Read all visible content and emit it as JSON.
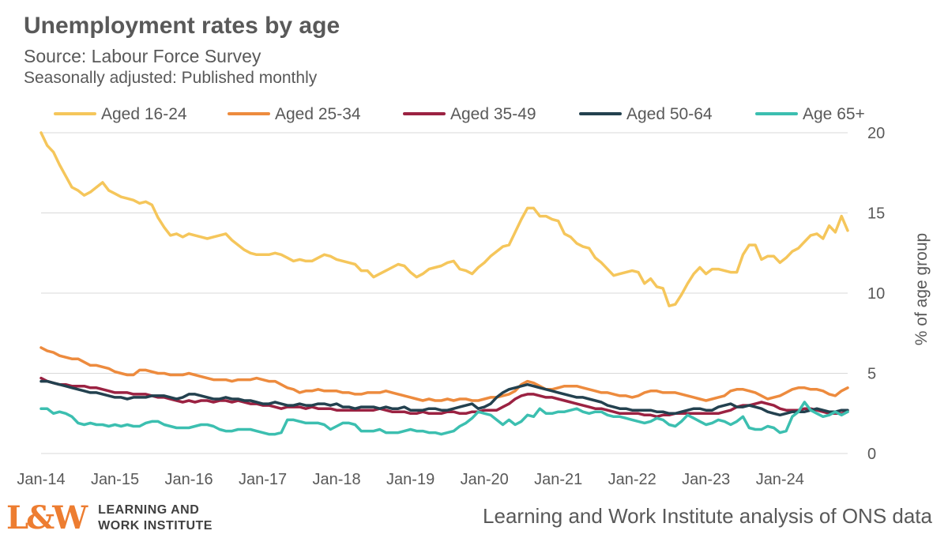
{
  "header": {
    "title": "Unemployment rates by age",
    "subtitle": "Source: Labour Force Survey",
    "subtitle2": "Seasonally adjusted: Published monthly"
  },
  "footer": {
    "logo_mark": "L&W",
    "logo_line1": "LEARNING AND",
    "logo_line2": "WORK INSTITUTE",
    "source_note": "Learning and Work Institute analysis of ONS data"
  },
  "chart_data": {
    "type": "line",
    "title": "Unemployment rates by age",
    "ylabel": "% of age group",
    "ylim": [
      0,
      20
    ],
    "yticks": [
      0,
      5,
      10,
      15,
      20
    ],
    "y_axis_side": "right",
    "grid": true,
    "legend_position": "top",
    "x_start": "Jan-14",
    "x_tick_labels": [
      "Jan-14",
      "Jan-15",
      "Jan-16",
      "Jan-17",
      "Jan-18",
      "Jan-19",
      "Jan-20",
      "Jan-21",
      "Jan-22",
      "Jan-23",
      "Jan-24"
    ],
    "frequency": "monthly",
    "series": [
      {
        "name": "Aged 16-24",
        "color": "#f5c65b",
        "values": [
          20.0,
          19.2,
          18.8,
          18.0,
          17.3,
          16.6,
          16.4,
          16.1,
          16.3,
          16.6,
          16.9,
          16.4,
          16.2,
          16.0,
          15.9,
          15.8,
          15.6,
          15.7,
          15.5,
          14.7,
          14.1,
          13.6,
          13.7,
          13.5,
          13.7,
          13.6,
          13.5,
          13.4,
          13.5,
          13.6,
          13.7,
          13.3,
          13.0,
          12.7,
          12.5,
          12.4,
          12.4,
          12.4,
          12.5,
          12.4,
          12.2,
          12.0,
          12.1,
          12.0,
          12.0,
          12.2,
          12.4,
          12.3,
          12.1,
          12.0,
          11.9,
          11.8,
          11.4,
          11.4,
          11.0,
          11.2,
          11.4,
          11.6,
          11.8,
          11.7,
          11.3,
          11.0,
          11.2,
          11.5,
          11.6,
          11.7,
          11.9,
          12.0,
          11.5,
          11.4,
          11.2,
          11.6,
          11.9,
          12.3,
          12.6,
          12.9,
          13.0,
          13.8,
          14.6,
          15.3,
          15.3,
          14.8,
          14.8,
          14.6,
          14.5,
          13.7,
          13.5,
          13.1,
          12.9,
          12.8,
          12.2,
          11.9,
          11.5,
          11.1,
          11.2,
          11.3,
          11.4,
          11.3,
          10.6,
          10.9,
          10.4,
          10.3,
          9.2,
          9.3,
          9.9,
          10.6,
          11.2,
          11.6,
          11.2,
          11.5,
          11.5,
          11.4,
          11.3,
          11.3,
          12.4,
          13.0,
          13.0,
          12.1,
          12.3,
          12.3,
          11.9,
          12.2,
          12.6,
          12.8,
          13.2,
          13.6,
          13.7,
          13.4,
          14.2,
          13.8,
          14.8,
          13.9
        ]
      },
      {
        "name": "Aged 25-34",
        "color": "#ed8b3e",
        "values": [
          6.6,
          6.4,
          6.3,
          6.1,
          6.0,
          5.9,
          5.9,
          5.7,
          5.5,
          5.5,
          5.4,
          5.3,
          5.1,
          5.0,
          4.9,
          4.9,
          5.2,
          5.2,
          5.1,
          5.0,
          5.0,
          4.9,
          4.9,
          4.9,
          5.0,
          4.9,
          4.8,
          4.7,
          4.6,
          4.6,
          4.6,
          4.5,
          4.6,
          4.6,
          4.6,
          4.7,
          4.6,
          4.5,
          4.5,
          4.3,
          4.1,
          4.0,
          3.8,
          3.9,
          3.9,
          4.0,
          3.9,
          3.9,
          3.9,
          3.8,
          3.8,
          3.7,
          3.7,
          3.8,
          3.8,
          3.8,
          3.9,
          3.8,
          3.7,
          3.6,
          3.5,
          3.4,
          3.3,
          3.4,
          3.3,
          3.3,
          3.4,
          3.3,
          3.4,
          3.4,
          3.3,
          3.3,
          3.4,
          3.5,
          3.5,
          3.6,
          3.7,
          3.9,
          4.3,
          4.5,
          4.4,
          4.2,
          4.0,
          4.0,
          4.1,
          4.2,
          4.2,
          4.2,
          4.1,
          4.0,
          3.9,
          3.8,
          3.8,
          3.7,
          3.6,
          3.6,
          3.5,
          3.6,
          3.8,
          3.9,
          3.9,
          3.8,
          3.8,
          3.8,
          3.7,
          3.6,
          3.5,
          3.4,
          3.3,
          3.4,
          3.5,
          3.6,
          3.9,
          4.0,
          4.0,
          3.9,
          3.8,
          3.6,
          3.4,
          3.5,
          3.6,
          3.8,
          4.0,
          4.1,
          4.1,
          4.0,
          4.0,
          3.9,
          3.7,
          3.6,
          3.9,
          4.1
        ]
      },
      {
        "name": "Aged 35-49",
        "color": "#9b2242",
        "values": [
          4.7,
          4.5,
          4.4,
          4.3,
          4.3,
          4.2,
          4.2,
          4.2,
          4.1,
          4.1,
          4.0,
          3.9,
          3.8,
          3.8,
          3.8,
          3.7,
          3.7,
          3.7,
          3.6,
          3.5,
          3.5,
          3.4,
          3.3,
          3.2,
          3.3,
          3.2,
          3.3,
          3.3,
          3.2,
          3.3,
          3.3,
          3.2,
          3.3,
          3.2,
          3.1,
          3.1,
          3.0,
          3.0,
          2.9,
          2.8,
          2.9,
          2.9,
          2.9,
          2.8,
          2.9,
          2.8,
          2.8,
          2.8,
          2.7,
          2.7,
          2.7,
          2.7,
          2.7,
          2.7,
          2.7,
          2.8,
          2.7,
          2.6,
          2.6,
          2.6,
          2.5,
          2.5,
          2.6,
          2.5,
          2.5,
          2.5,
          2.6,
          2.6,
          2.5,
          2.5,
          2.6,
          2.6,
          2.7,
          2.7,
          2.7,
          2.9,
          3.1,
          3.4,
          3.6,
          3.7,
          3.7,
          3.6,
          3.5,
          3.5,
          3.4,
          3.3,
          3.2,
          3.1,
          3.0,
          2.9,
          2.8,
          2.8,
          2.7,
          2.6,
          2.5,
          2.5,
          2.5,
          2.5,
          2.4,
          2.4,
          2.3,
          2.4,
          2.4,
          2.5,
          2.5,
          2.5,
          2.5,
          2.5,
          2.5,
          2.5,
          2.5,
          2.6,
          2.7,
          2.9,
          3.0,
          3.0,
          3.1,
          3.2,
          3.1,
          3.0,
          2.8,
          2.7,
          2.7,
          2.7,
          2.8,
          2.8,
          2.7,
          2.6,
          2.5,
          2.5,
          2.5,
          2.6
        ]
      },
      {
        "name": "Aged 50-64",
        "color": "#23414f",
        "values": [
          4.5,
          4.5,
          4.4,
          4.3,
          4.2,
          4.1,
          4.0,
          3.9,
          3.8,
          3.8,
          3.7,
          3.6,
          3.5,
          3.5,
          3.4,
          3.5,
          3.5,
          3.5,
          3.6,
          3.6,
          3.6,
          3.5,
          3.4,
          3.5,
          3.7,
          3.7,
          3.6,
          3.5,
          3.4,
          3.4,
          3.5,
          3.4,
          3.4,
          3.3,
          3.3,
          3.2,
          3.1,
          3.1,
          3.2,
          3.1,
          3.0,
          3.0,
          3.1,
          3.0,
          3.0,
          3.1,
          3.1,
          3.0,
          3.1,
          2.9,
          2.9,
          2.8,
          2.9,
          2.9,
          2.9,
          2.8,
          2.9,
          2.8,
          2.8,
          2.9,
          2.7,
          2.7,
          2.7,
          2.8,
          2.8,
          2.7,
          2.7,
          2.8,
          2.9,
          3.0,
          3.1,
          2.8,
          2.9,
          3.1,
          3.5,
          3.8,
          4.0,
          4.1,
          4.2,
          4.3,
          4.2,
          4.1,
          4.0,
          3.9,
          3.8,
          3.7,
          3.6,
          3.5,
          3.5,
          3.4,
          3.3,
          3.2,
          3.0,
          2.9,
          2.8,
          2.8,
          2.7,
          2.7,
          2.7,
          2.7,
          2.6,
          2.6,
          2.5,
          2.5,
          2.6,
          2.7,
          2.8,
          2.8,
          2.7,
          2.7,
          2.9,
          3.0,
          3.1,
          2.9,
          2.9,
          3.0,
          2.9,
          2.8,
          2.6,
          2.5,
          2.4,
          2.5,
          2.6,
          2.6,
          2.6,
          2.7,
          2.8,
          2.7,
          2.6,
          2.6,
          2.7,
          2.7
        ]
      },
      {
        "name": "Age 65+",
        "color": "#3cbfb0",
        "values": [
          2.8,
          2.8,
          2.5,
          2.6,
          2.5,
          2.3,
          1.9,
          1.8,
          1.9,
          1.8,
          1.8,
          1.7,
          1.8,
          1.7,
          1.8,
          1.7,
          1.7,
          1.9,
          2.0,
          2.0,
          1.8,
          1.7,
          1.6,
          1.6,
          1.6,
          1.7,
          1.8,
          1.8,
          1.7,
          1.5,
          1.4,
          1.4,
          1.5,
          1.5,
          1.5,
          1.4,
          1.3,
          1.2,
          1.2,
          1.3,
          2.1,
          2.1,
          2.0,
          1.9,
          1.9,
          1.9,
          1.8,
          1.5,
          1.7,
          1.9,
          1.9,
          1.8,
          1.4,
          1.4,
          1.4,
          1.5,
          1.3,
          1.3,
          1.3,
          1.4,
          1.5,
          1.4,
          1.4,
          1.3,
          1.3,
          1.2,
          1.3,
          1.4,
          1.7,
          1.9,
          2.2,
          2.6,
          2.5,
          2.4,
          2.1,
          1.8,
          2.1,
          1.8,
          2.0,
          2.4,
          2.3,
          2.8,
          2.5,
          2.5,
          2.6,
          2.6,
          2.7,
          2.8,
          2.6,
          2.5,
          2.6,
          2.6,
          2.4,
          2.3,
          2.3,
          2.2,
          2.1,
          2.0,
          1.9,
          2.0,
          2.2,
          2.1,
          1.8,
          1.7,
          2.0,
          2.4,
          2.2,
          2.0,
          1.8,
          1.9,
          2.1,
          2.0,
          1.8,
          2.0,
          2.3,
          1.6,
          1.5,
          1.5,
          1.7,
          1.6,
          1.3,
          1.4,
          2.3,
          2.6,
          3.2,
          2.7,
          2.5,
          2.3,
          2.4,
          2.6,
          2.4,
          2.6
        ]
      }
    ]
  }
}
